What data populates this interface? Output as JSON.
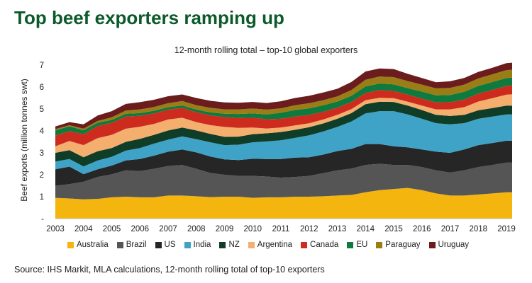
{
  "headline": "Top beef exporters ramping up",
  "chart_data": {
    "type": "area",
    "title": "12-month rolling total – top-10 global exporters",
    "xlabel": "",
    "ylabel": "Beef exports (million tonnes swt)",
    "ylim": [
      0,
      7
    ],
    "yticks": [
      "-",
      "1",
      "2",
      "3",
      "4",
      "5",
      "6",
      "7"
    ],
    "x_tick_labels": [
      "2003",
      "2004",
      "2005",
      "2006",
      "2007",
      "2008",
      "2009",
      "2010",
      "2011",
      "2012",
      "2013",
      "2014",
      "2015",
      "2016",
      "2017",
      "2018",
      "2019"
    ],
    "x": [
      2003.0,
      2003.5,
      2004.0,
      2004.5,
      2005.0,
      2005.5,
      2006.0,
      2006.5,
      2007.0,
      2007.5,
      2008.0,
      2008.5,
      2009.0,
      2009.5,
      2010.0,
      2010.5,
      2011.0,
      2011.5,
      2012.0,
      2012.5,
      2013.0,
      2013.5,
      2014.0,
      2014.5,
      2015.0,
      2015.5,
      2016.0,
      2016.5,
      2017.0,
      2017.5,
      2018.0,
      2018.5,
      2019.0,
      2019.2
    ],
    "series": [
      {
        "name": "Australia",
        "color": "#f5b50f",
        "values": [
          0.95,
          0.92,
          0.88,
          0.9,
          0.97,
          1.0,
          0.97,
          0.97,
          1.05,
          1.05,
          1.02,
          0.98,
          1.0,
          1.0,
          0.95,
          0.97,
          0.97,
          1.0,
          1.0,
          1.02,
          1.05,
          1.08,
          1.2,
          1.3,
          1.35,
          1.4,
          1.3,
          1.15,
          1.05,
          1.05,
          1.1,
          1.15,
          1.2,
          1.2
        ]
      },
      {
        "name": "Brazil",
        "color": "#555555",
        "values": [
          0.55,
          0.65,
          0.8,
          1.0,
          1.05,
          1.2,
          1.2,
          1.3,
          1.35,
          1.4,
          1.25,
          1.1,
          1.0,
          0.95,
          1.0,
          0.95,
          0.9,
          0.9,
          0.95,
          1.05,
          1.15,
          1.2,
          1.25,
          1.2,
          1.1,
          1.05,
          1.05,
          1.05,
          1.05,
          1.15,
          1.25,
          1.3,
          1.35,
          1.35
        ]
      },
      {
        "name": "US",
        "color": "#262626",
        "values": [
          0.75,
          0.8,
          0.35,
          0.35,
          0.4,
          0.45,
          0.55,
          0.6,
          0.65,
          0.7,
          0.75,
          0.75,
          0.7,
          0.72,
          0.78,
          0.8,
          0.85,
          0.88,
          0.85,
          0.85,
          0.88,
          0.9,
          0.95,
          0.9,
          0.85,
          0.8,
          0.8,
          0.85,
          0.9,
          0.95,
          1.0,
          1.0,
          1.0,
          1.0
        ]
      },
      {
        "name": "India",
        "color": "#3ea3c7",
        "values": [
          0.35,
          0.35,
          0.35,
          0.4,
          0.4,
          0.45,
          0.5,
          0.55,
          0.55,
          0.6,
          0.6,
          0.65,
          0.65,
          0.7,
          0.75,
          0.8,
          0.85,
          0.9,
          1.0,
          1.05,
          1.1,
          1.25,
          1.4,
          1.5,
          1.6,
          1.5,
          1.4,
          1.3,
          1.3,
          1.2,
          1.2,
          1.2,
          1.2,
          1.2
        ]
      },
      {
        "name": "NZ",
        "color": "#0f3d27",
        "values": [
          0.4,
          0.4,
          0.42,
          0.42,
          0.4,
          0.4,
          0.42,
          0.4,
          0.42,
          0.4,
          0.4,
          0.38,
          0.38,
          0.37,
          0.37,
          0.37,
          0.38,
          0.37,
          0.37,
          0.37,
          0.37,
          0.38,
          0.42,
          0.43,
          0.42,
          0.4,
          0.4,
          0.38,
          0.38,
          0.38,
          0.39,
          0.39,
          0.4,
          0.4
        ]
      },
      {
        "name": "Argentina",
        "color": "#f4ae6e",
        "values": [
          0.3,
          0.42,
          0.55,
          0.6,
          0.6,
          0.6,
          0.55,
          0.5,
          0.5,
          0.45,
          0.38,
          0.4,
          0.45,
          0.4,
          0.3,
          0.22,
          0.2,
          0.2,
          0.18,
          0.18,
          0.18,
          0.18,
          0.18,
          0.18,
          0.17,
          0.18,
          0.2,
          0.25,
          0.3,
          0.35,
          0.4,
          0.45,
          0.5,
          0.52
        ]
      },
      {
        "name": "Canada",
        "color": "#cd2b1e",
        "values": [
          0.48,
          0.45,
          0.5,
          0.55,
          0.55,
          0.55,
          0.5,
          0.48,
          0.45,
          0.45,
          0.45,
          0.45,
          0.45,
          0.45,
          0.45,
          0.42,
          0.4,
          0.4,
          0.38,
          0.35,
          0.33,
          0.33,
          0.33,
          0.35,
          0.33,
          0.32,
          0.32,
          0.32,
          0.33,
          0.35,
          0.36,
          0.38,
          0.4,
          0.4
        ]
      },
      {
        "name": "EU",
        "color": "#0e7a3d",
        "values": [
          0.25,
          0.22,
          0.18,
          0.15,
          0.13,
          0.13,
          0.12,
          0.12,
          0.11,
          0.11,
          0.12,
          0.14,
          0.15,
          0.18,
          0.2,
          0.22,
          0.28,
          0.3,
          0.3,
          0.3,
          0.28,
          0.28,
          0.3,
          0.3,
          0.3,
          0.3,
          0.32,
          0.32,
          0.33,
          0.35,
          0.35,
          0.36,
          0.36,
          0.36
        ]
      },
      {
        "name": "Paraguay",
        "color": "#9b7d16",
        "values": [
          0.05,
          0.05,
          0.07,
          0.08,
          0.12,
          0.15,
          0.17,
          0.17,
          0.18,
          0.2,
          0.2,
          0.2,
          0.2,
          0.21,
          0.22,
          0.22,
          0.2,
          0.22,
          0.23,
          0.23,
          0.23,
          0.26,
          0.3,
          0.32,
          0.33,
          0.32,
          0.32,
          0.32,
          0.32,
          0.33,
          0.34,
          0.35,
          0.36,
          0.36
        ]
      },
      {
        "name": "Uruguay",
        "color": "#6b1c1c",
        "values": [
          0.12,
          0.14,
          0.2,
          0.25,
          0.28,
          0.3,
          0.33,
          0.33,
          0.32,
          0.3,
          0.33,
          0.32,
          0.32,
          0.3,
          0.3,
          0.3,
          0.32,
          0.33,
          0.34,
          0.35,
          0.35,
          0.37,
          0.38,
          0.37,
          0.37,
          0.33,
          0.3,
          0.28,
          0.3,
          0.3,
          0.3,
          0.3,
          0.32,
          0.32
        ]
      }
    ]
  },
  "source": "Source: IHS Markit, MLA calculations, 12-month rolling total of top-10 exporters"
}
